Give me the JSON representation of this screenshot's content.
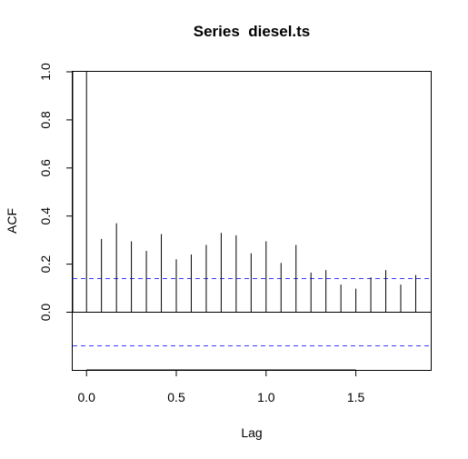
{
  "chart_data": {
    "type": "bar",
    "title": "Series  diesel.ts",
    "xlabel": "Lag",
    "ylabel": "ACF",
    "xlim": [
      -0.077,
      1.917
    ],
    "ylim": [
      -0.24,
      1.0
    ],
    "x_ticks": [
      0.0,
      0.5,
      1.0,
      1.5
    ],
    "x_tick_labels": [
      "0.0",
      "0.5",
      "1.0",
      "1.5"
    ],
    "y_ticks": [
      0.0,
      0.2,
      0.4,
      0.6,
      0.8,
      1.0
    ],
    "y_tick_labels": [
      "0.0",
      "0.2",
      "0.4",
      "0.6",
      "0.8",
      "1.0"
    ],
    "lags": [
      0.0,
      0.0833,
      0.1667,
      0.25,
      0.3333,
      0.4167,
      0.5,
      0.5833,
      0.6667,
      0.75,
      0.8333,
      0.9167,
      1.0,
      1.0833,
      1.1667,
      1.25,
      1.3333,
      1.4167,
      1.5,
      1.5833,
      1.6667,
      1.75,
      1.8333
    ],
    "acf": [
      1.0,
      0.305,
      0.37,
      0.295,
      0.255,
      0.325,
      0.22,
      0.24,
      0.28,
      0.33,
      0.32,
      0.245,
      0.295,
      0.205,
      0.28,
      0.165,
      0.175,
      0.115,
      0.098,
      0.145,
      0.175,
      0.115,
      0.155
    ],
    "confidence_bound": 0.14,
    "confidence_color": "#3b3bff",
    "zero_line": 0.0,
    "grid": false
  }
}
